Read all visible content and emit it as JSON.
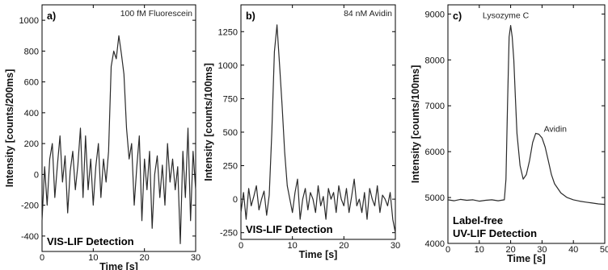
{
  "chart_data": [
    {
      "type": "line",
      "panel_label": "a)",
      "annotation": "100 fM Fluorescein",
      "detection_text": "VIS-LIF Detection",
      "xlabel": "Time [s]",
      "ylabel": "Intensity [counts/200ms]",
      "xlim": [
        0,
        30
      ],
      "ylim": [
        -500,
        1100
      ],
      "xticks": [
        "0",
        "10",
        "20",
        "30"
      ],
      "yticks": [
        "-400",
        "-200",
        "0",
        "200",
        "400",
        "600",
        "800",
        "1000"
      ],
      "xtick_values": [
        0,
        10,
        20,
        30
      ],
      "ytick_values": [
        -400,
        -200,
        0,
        200,
        400,
        600,
        800,
        1000
      ],
      "series": [
        {
          "x": [
            0,
            0.5,
            1,
            1.5,
            2,
            2.5,
            3,
            3.5,
            4,
            4.5,
            5,
            5.5,
            6,
            6.5,
            7,
            7.5,
            8,
            8.5,
            9,
            9.5,
            10,
            10.5,
            11,
            11.5,
            12,
            12.5,
            13,
            13.5,
            14,
            14.5,
            15,
            15.5,
            16,
            16.5,
            17,
            17.5,
            18,
            18.5,
            19,
            19.5,
            20,
            20.5,
            21,
            21.5,
            22,
            22.5,
            23,
            23.5,
            24,
            24.5,
            25,
            25.5,
            26,
            26.5,
            27,
            27.5,
            28,
            28.5,
            29,
            29.5,
            30
          ],
          "y": [
            -300,
            50,
            -200,
            100,
            200,
            -150,
            60,
            250,
            -50,
            120,
            -250,
            20,
            150,
            -100,
            60,
            300,
            -150,
            250,
            -100,
            100,
            -200,
            50,
            200,
            -150,
            100,
            -50,
            150,
            700,
            800,
            750,
            900,
            780,
            650,
            300,
            100,
            200,
            -200,
            50,
            250,
            -300,
            100,
            -100,
            150,
            -350,
            0,
            120,
            -150,
            60,
            -200,
            200,
            -50,
            100,
            -100,
            50,
            -450,
            150,
            -150,
            300,
            -300,
            150,
            -100
          ]
        }
      ]
    },
    {
      "type": "line",
      "panel_label": "b)",
      "annotation": "84 nM Avidin",
      "detection_text": "VIS-LIF Detection",
      "xlabel": "Time [s]",
      "ylabel": "Intensity [counts/100ms]",
      "xlim": [
        0,
        30
      ],
      "ylim": [
        -300,
        1450
      ],
      "xticks": [
        "0",
        "10",
        "20",
        "30"
      ],
      "yticks": [
        "-250",
        "0",
        "250",
        "500",
        "750",
        "1000",
        "1250"
      ],
      "xtick_values": [
        0,
        10,
        20,
        30
      ],
      "ytick_values": [
        -250,
        0,
        250,
        500,
        750,
        1000,
        1250
      ],
      "series": [
        {
          "x": [
            0,
            0.5,
            1,
            1.5,
            2,
            2.5,
            3,
            3.5,
            4,
            4.5,
            5,
            5.5,
            6,
            6.5,
            7,
            7.5,
            8,
            8.5,
            9,
            9.5,
            10,
            10.5,
            11,
            11.5,
            12,
            12.5,
            13,
            13.5,
            14,
            14.5,
            15,
            15.5,
            16,
            16.5,
            17,
            17.5,
            18,
            18.5,
            19,
            19.5,
            20,
            20.5,
            21,
            21.5,
            22,
            22.5,
            23,
            23.5,
            24,
            24.5,
            25,
            25.5,
            26,
            26.5,
            27,
            27.5,
            28,
            28.5,
            29,
            29.5,
            30
          ],
          "y": [
            -100,
            50,
            -150,
            80,
            -50,
            20,
            100,
            -80,
            0,
            60,
            -120,
            30,
            500,
            1100,
            1300,
            1000,
            700,
            350,
            100,
            0,
            -100,
            50,
            150,
            -150,
            0,
            80,
            -80,
            50,
            0,
            -100,
            100,
            -50,
            20,
            -150,
            80,
            0,
            50,
            -100,
            100,
            0,
            -50,
            80,
            -100,
            20,
            150,
            -50,
            0,
            -100,
            50,
            -150,
            80,
            0,
            -50,
            100,
            -100,
            30,
            0,
            -50,
            50,
            -150,
            -250
          ]
        }
      ]
    },
    {
      "type": "line",
      "panel_label": "c)",
      "detection_text": [
        "Label-free",
        "UV-LIF Detection"
      ],
      "xlabel": "Time [s]",
      "ylabel": "Intensity [counts/100ms]",
      "xlim": [
        0,
        50
      ],
      "ylim": [
        4000,
        9200
      ],
      "xticks": [
        "0",
        "10",
        "20",
        "30",
        "40",
        "50"
      ],
      "yticks": [
        "4000",
        "5000",
        "6000",
        "7000",
        "8000",
        "9000"
      ],
      "xtick_values": [
        0,
        10,
        20,
        30,
        40,
        50
      ],
      "ytick_values": [
        4000,
        5000,
        6000,
        7000,
        8000,
        9000
      ],
      "annotations": [
        {
          "text": "Lysozyme C",
          "x": 20,
          "y": 8700
        },
        {
          "text": "Avidin",
          "x": 28.5,
          "y": 6400
        }
      ],
      "series": [
        {
          "x": [
            0,
            2,
            4,
            6,
            8,
            10,
            12,
            14,
            16,
            18,
            18.5,
            19,
            19.5,
            20,
            20.5,
            21,
            21.5,
            22,
            23,
            24,
            25,
            26,
            27,
            28,
            29,
            30,
            31,
            32,
            33,
            34,
            36,
            38,
            40,
            42,
            44,
            46,
            48,
            50
          ],
          "y": [
            4950,
            4930,
            4960,
            4940,
            4950,
            4920,
            4940,
            4950,
            4930,
            4950,
            5400,
            7000,
            8500,
            8750,
            8500,
            8000,
            7200,
            6400,
            5700,
            5400,
            5500,
            5800,
            6200,
            6400,
            6380,
            6300,
            6100,
            5800,
            5500,
            5300,
            5100,
            5000,
            4950,
            4920,
            4900,
            4880,
            4860,
            4850
          ]
        }
      ]
    }
  ]
}
